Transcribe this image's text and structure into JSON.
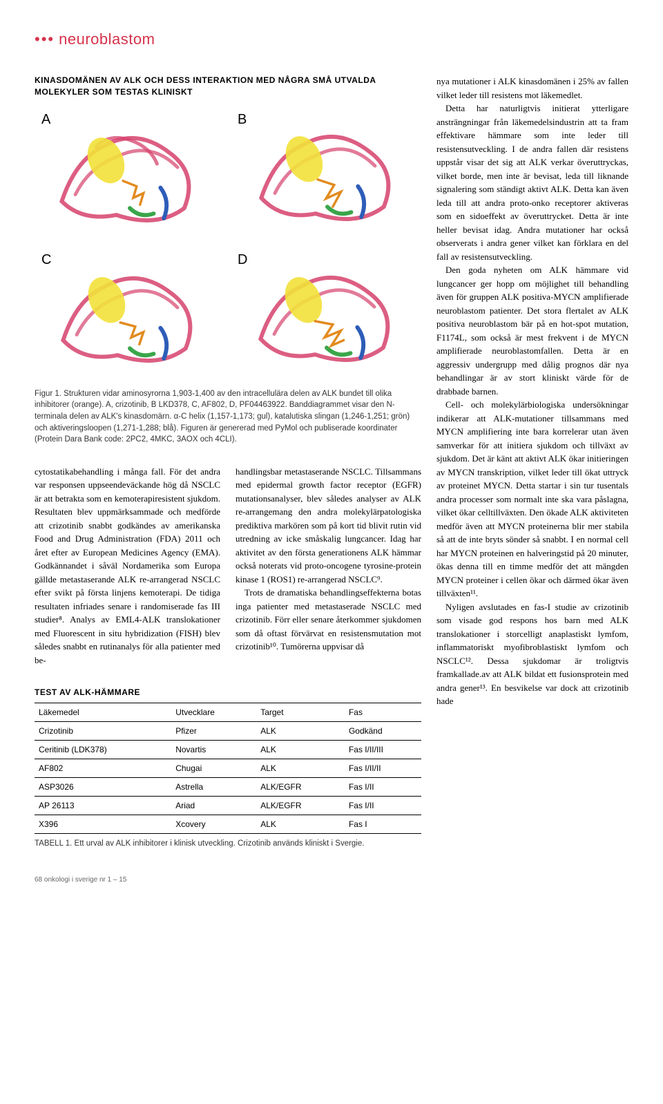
{
  "tag": {
    "dots": "•••",
    "label": "neuroblastom"
  },
  "figure": {
    "title": "KINASDOMÄNEN AV ALK OCH DESS INTERAKTION MED NÅGRA SMÅ UTVALDA MOLEKYLER SOM TESTAS KLINISKT",
    "panels": [
      "A",
      "B",
      "C",
      "D"
    ],
    "caption": "Figur 1. Strukturen vidar aminosyrorna 1,903-1,400 av den intracellulära delen av ALK bundet till olika inhibitorer (orange). A, crizotinib, B LKD378, C, AF802, D, PF04463922. Banddiagrammet visar den N-terminala delen av ALK's kinasdomärn. α-C helix (1,157-1,173; gul), katalutiska slingan (1,246-1,251; grön) och aktiveringsloopen (1,271-1,288; blå). Figuren är genererad med PyMol och publiserade koordinater (Protein Dara Bank code: 2PC2, 4MKC, 3AOX och 4CLI).",
    "colors": {
      "ribbon": "#d6426c",
      "helix_yellow": "#f2e23a",
      "loop_green": "#3aa64a",
      "loop_blue": "#2e5db8",
      "ligand": "#e28b1f",
      "background": "#ffffff"
    }
  },
  "body": {
    "left_col1": "cytostatikabehandling i många fall. För det andra var responsen uppseendeväckande hög då NSCLC är att betrakta som en kemoterapiresistent sjukdom. Resultaten blev uppmärksammade och medförde att crizotinib snabbt godkändes av amerikanska Food and Drug Administration (FDA) 2011 och året efter av European Medicines Agency (EMA). Godkännandet i såväl Nordamerika som Europa gällde metastaserande ALK re-arrangerad NSCLC efter svikt på första linjens kemoterapi. De tidiga resultaten infriades senare i randomiserade fas III studier⁸. Analys av EML4-ALK translokationer med Fluorescent in situ hybridization (FISH) blev således snabbt en rutinanalys för alla patienter med be-",
    "left_col2": "handlingsbar metastaserande NSCLC. Tillsammans med epidermal growth factor receptor (EGFR) mutationsanalyser, blev således analyser av ALK re-arrangemang den andra molekylärpatologiska prediktiva markören som på kort tid blivit rutin vid utredning av icke småskalig lungcancer. Idag har aktivitet av den första generationens ALK hämmar också noterats vid proto-oncogene tyrosine-protein kinase 1 (ROS1) re-arrangerad NSCLC⁹.",
    "left_col2_p2": "Trots de dramatiska behandlingseffekterna botas inga patienter med metastaserade NSCLC med crizotinib. Förr eller senare återkommer sjukdomen som då oftast förvärvat en resistensmutation mot crizotinib¹⁰. Tumörerna uppvisar då",
    "right_p1": "nya mutationer i ALK kinasdomänen i 25% av fallen vilket leder till resistens mot läkemedlet.",
    "right_p2": "Detta har naturligtvis initierat ytterligare ansträngningar från läkemedelsindustrin att ta fram effektivare hämmare som inte leder till resistensutveckling. I de andra fallen där resistens uppstår visar det sig att ALK verkar överuttryckas, vilket borde, men inte är bevisat, leda till liknande signalering som ständigt aktivt ALK. Detta kan även leda till att andra proto-onko receptorer aktiveras som en sidoeffekt av överuttrycket. Detta är inte heller bevisat idag. Andra mutationer har också observerats i andra gener vilket kan förklara en del fall av resistensutveckling.",
    "right_p3": "Den goda nyheten om ALK hämmare vid lungcancer ger hopp om möjlighet till behandling även för gruppen ALK positiva-MYCN amplifierade neuroblastom patienter. Det stora flertalet av ALK positiva neuroblastom bär på en hot-spot mutation, F1174L, som också är mest frekvent i de MYCN amplifierade neuroblastomfallen. Detta är en aggressiv undergrupp med dålig prognos där nya behandlingar är av stort kliniskt värde för de drabbade barnen.",
    "right_p4": "Cell- och molekylärbiologiska undersökningar indikerar att ALK-mutationer tillsammans med MYCN amplifiering inte bara korrelerar utan även samverkar för att initiera sjukdom och tillväxt av sjukdom. Det är känt att aktivt ALK ökar initieringen av MYCN transkription, vilket leder till ökat uttryck av proteinet MYCN. Detta startar i sin tur tusentals andra processer som normalt inte ska vara påslagna, vilket ökar celltillväxten. Den ökade ALK aktiviteten medför även att MYCN proteinerna blir mer stabila så att de inte bryts sönder så snabbt. I en normal cell har MYCN proteinen en halveringstid på 20 minuter, ökas denna till en timme medför det att mängden MYCN proteiner i cellen ökar och därmed ökar även tillväxten¹¹.",
    "right_p5": "Nyligen avslutades en fas-I studie av crizotinib som visade god respons hos barn med ALK translokationer i storcelligt anaplastiskt lymfom, inflammatoriskt myofibroblastiskt lymfom och NSCLC¹². Dessa sjukdomar är troligtvis framkallade.av att ALK bildat ett fusionsprotein med andra gener¹³. En besvikelse var dock att crizotinib hade"
  },
  "table": {
    "title": "TEST AV ALK-HÄMMARE",
    "columns": [
      "Läkemedel",
      "Utvecklare",
      "Target",
      "Fas"
    ],
    "rows": [
      [
        "Crizotinib",
        "Pfizer",
        "ALK",
        "Godkänd"
      ],
      [
        "Ceritinib (LDK378)",
        "Novartis",
        "ALK",
        "Fas I/II/III"
      ],
      [
        "AF802",
        "Chugai",
        "ALK",
        "Fas I/II/II"
      ],
      [
        "ASP3026",
        "Astrella",
        "ALK/EGFR",
        "Fas I/II"
      ],
      [
        "AP 26113",
        "Ariad",
        "ALK/EGFR",
        "Fas I/II"
      ],
      [
        "X396",
        "Xcovery",
        "ALK",
        "Fas I"
      ]
    ],
    "caption": "TABELL 1. Ett urval av ALK inhibitorer i klinisk utveckling. Crizotinib används kliniskt i Svergie."
  },
  "footer": "68  onkologi i sverige nr 1 – 15"
}
